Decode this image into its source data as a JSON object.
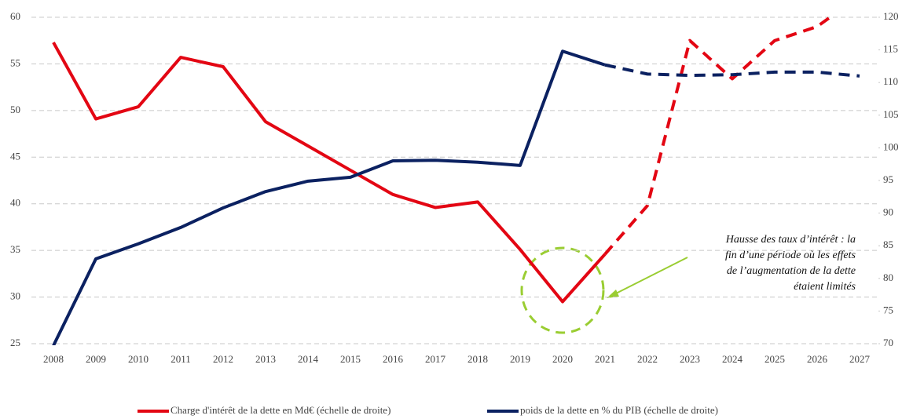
{
  "chart_data": {
    "type": "line",
    "categories": [
      "2008",
      "2009",
      "2010",
      "2011",
      "2012",
      "2013",
      "2014",
      "2015",
      "2016",
      "2017",
      "2018",
      "2019",
      "2020",
      "2021",
      "2022",
      "2023",
      "2024",
      "2025",
      "2026",
      "2027"
    ],
    "series": [
      {
        "name": "Charge d'intérêt de la dette en Md€ (échelle de droite)",
        "color": "#e30613",
        "axis": "y",
        "values": [
          57.3,
          49.1,
          50.4,
          55.7,
          54.7,
          48.8,
          46.2,
          43.6,
          41.0,
          39.6,
          40.2,
          35.1,
          29.5,
          34.6,
          39.8,
          57.5,
          53.4,
          57.5,
          59.0,
          62.3
        ]
      },
      {
        "name": "poids de la dette en % du PIB (échelle de droite)",
        "color": "#0b2161",
        "axis": "y2",
        "values": [
          69.7,
          83.0,
          85.3,
          87.8,
          90.8,
          93.3,
          94.9,
          95.5,
          98.0,
          98.1,
          97.8,
          97.3,
          114.8,
          112.7,
          111.3,
          111.1,
          111.2,
          111.6,
          111.6,
          111.0
        ]
      }
    ],
    "dashed_from": "2021",
    "ylim": [
      25,
      60
    ],
    "yticks": [
      25,
      30,
      35,
      40,
      45,
      50,
      55,
      60
    ],
    "y2lim": [
      70,
      120
    ],
    "y2ticks": [
      70,
      75,
      80,
      85,
      90,
      95,
      100,
      105,
      110,
      115,
      120
    ],
    "grid": true,
    "annotation": [
      "Hausse des taux d’intérêt : la",
      "fin d’une période où les effets",
      "de l’augmentation de la dette",
      "étaient limités"
    ]
  }
}
